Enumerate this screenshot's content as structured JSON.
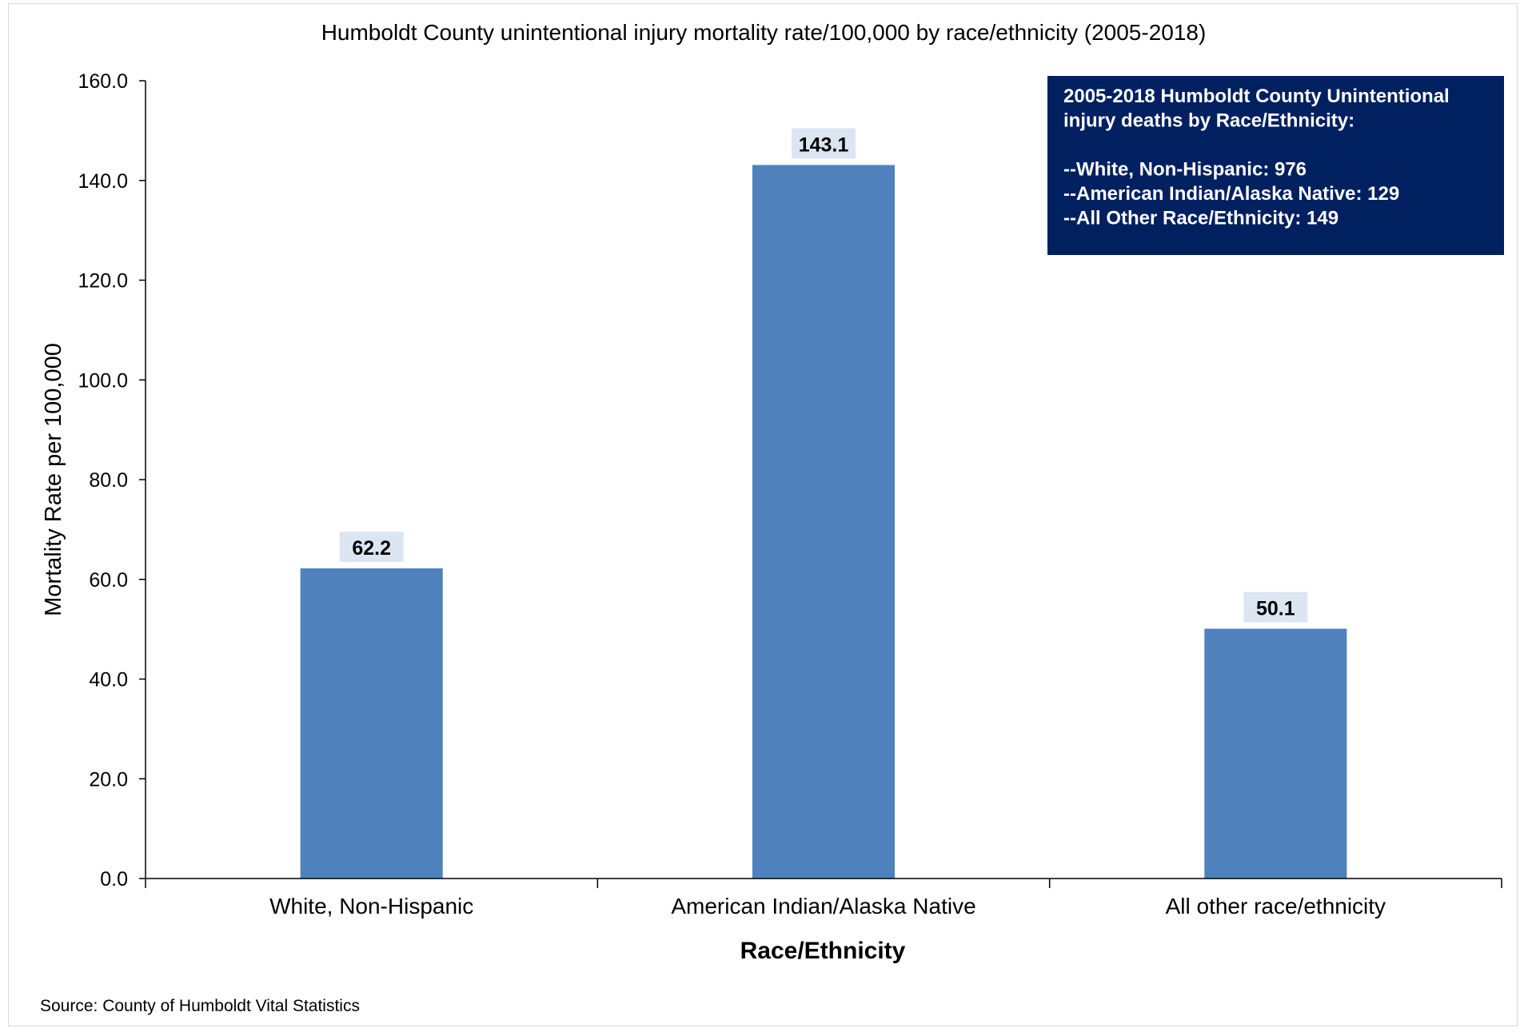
{
  "chart_data": {
    "type": "bar",
    "title": "Humboldt County unintentional injury mortality rate/100,000 by race/ethnicity (2005-2018)",
    "xlabel": "Race/Ethnicity",
    "ylabel": "Mortality Rate per 100,000",
    "categories": [
      "White, Non-Hispanic",
      "American Indian/Alaska Native",
      "All other race/ethnicity"
    ],
    "values": [
      62.2,
      143.1,
      50.1
    ],
    "data_labels": [
      "62.2",
      "143.1",
      "50.1"
    ],
    "ylim": [
      0,
      160
    ],
    "yticks": [
      "0.0",
      "20.0",
      "40.0",
      "60.0",
      "80.0",
      "100.0",
      "120.0",
      "140.0",
      "160.0"
    ],
    "grid": false,
    "legend": "none",
    "bar_color": "#4f81bd",
    "data_label_bg": "#dce6f2",
    "annotation": {
      "bg_color": "#002060",
      "lines": [
        "2005-2018 Humboldt County Unintentional",
        "injury deaths by Race/Ethnicity:",
        "",
        "--White, Non-Hispanic:  976",
        "--American Indian/Alaska Native:  129",
        "--All Other Race/Ethnicity:  149"
      ]
    },
    "source": "Source:  County of Humboldt Vital Statistics"
  }
}
